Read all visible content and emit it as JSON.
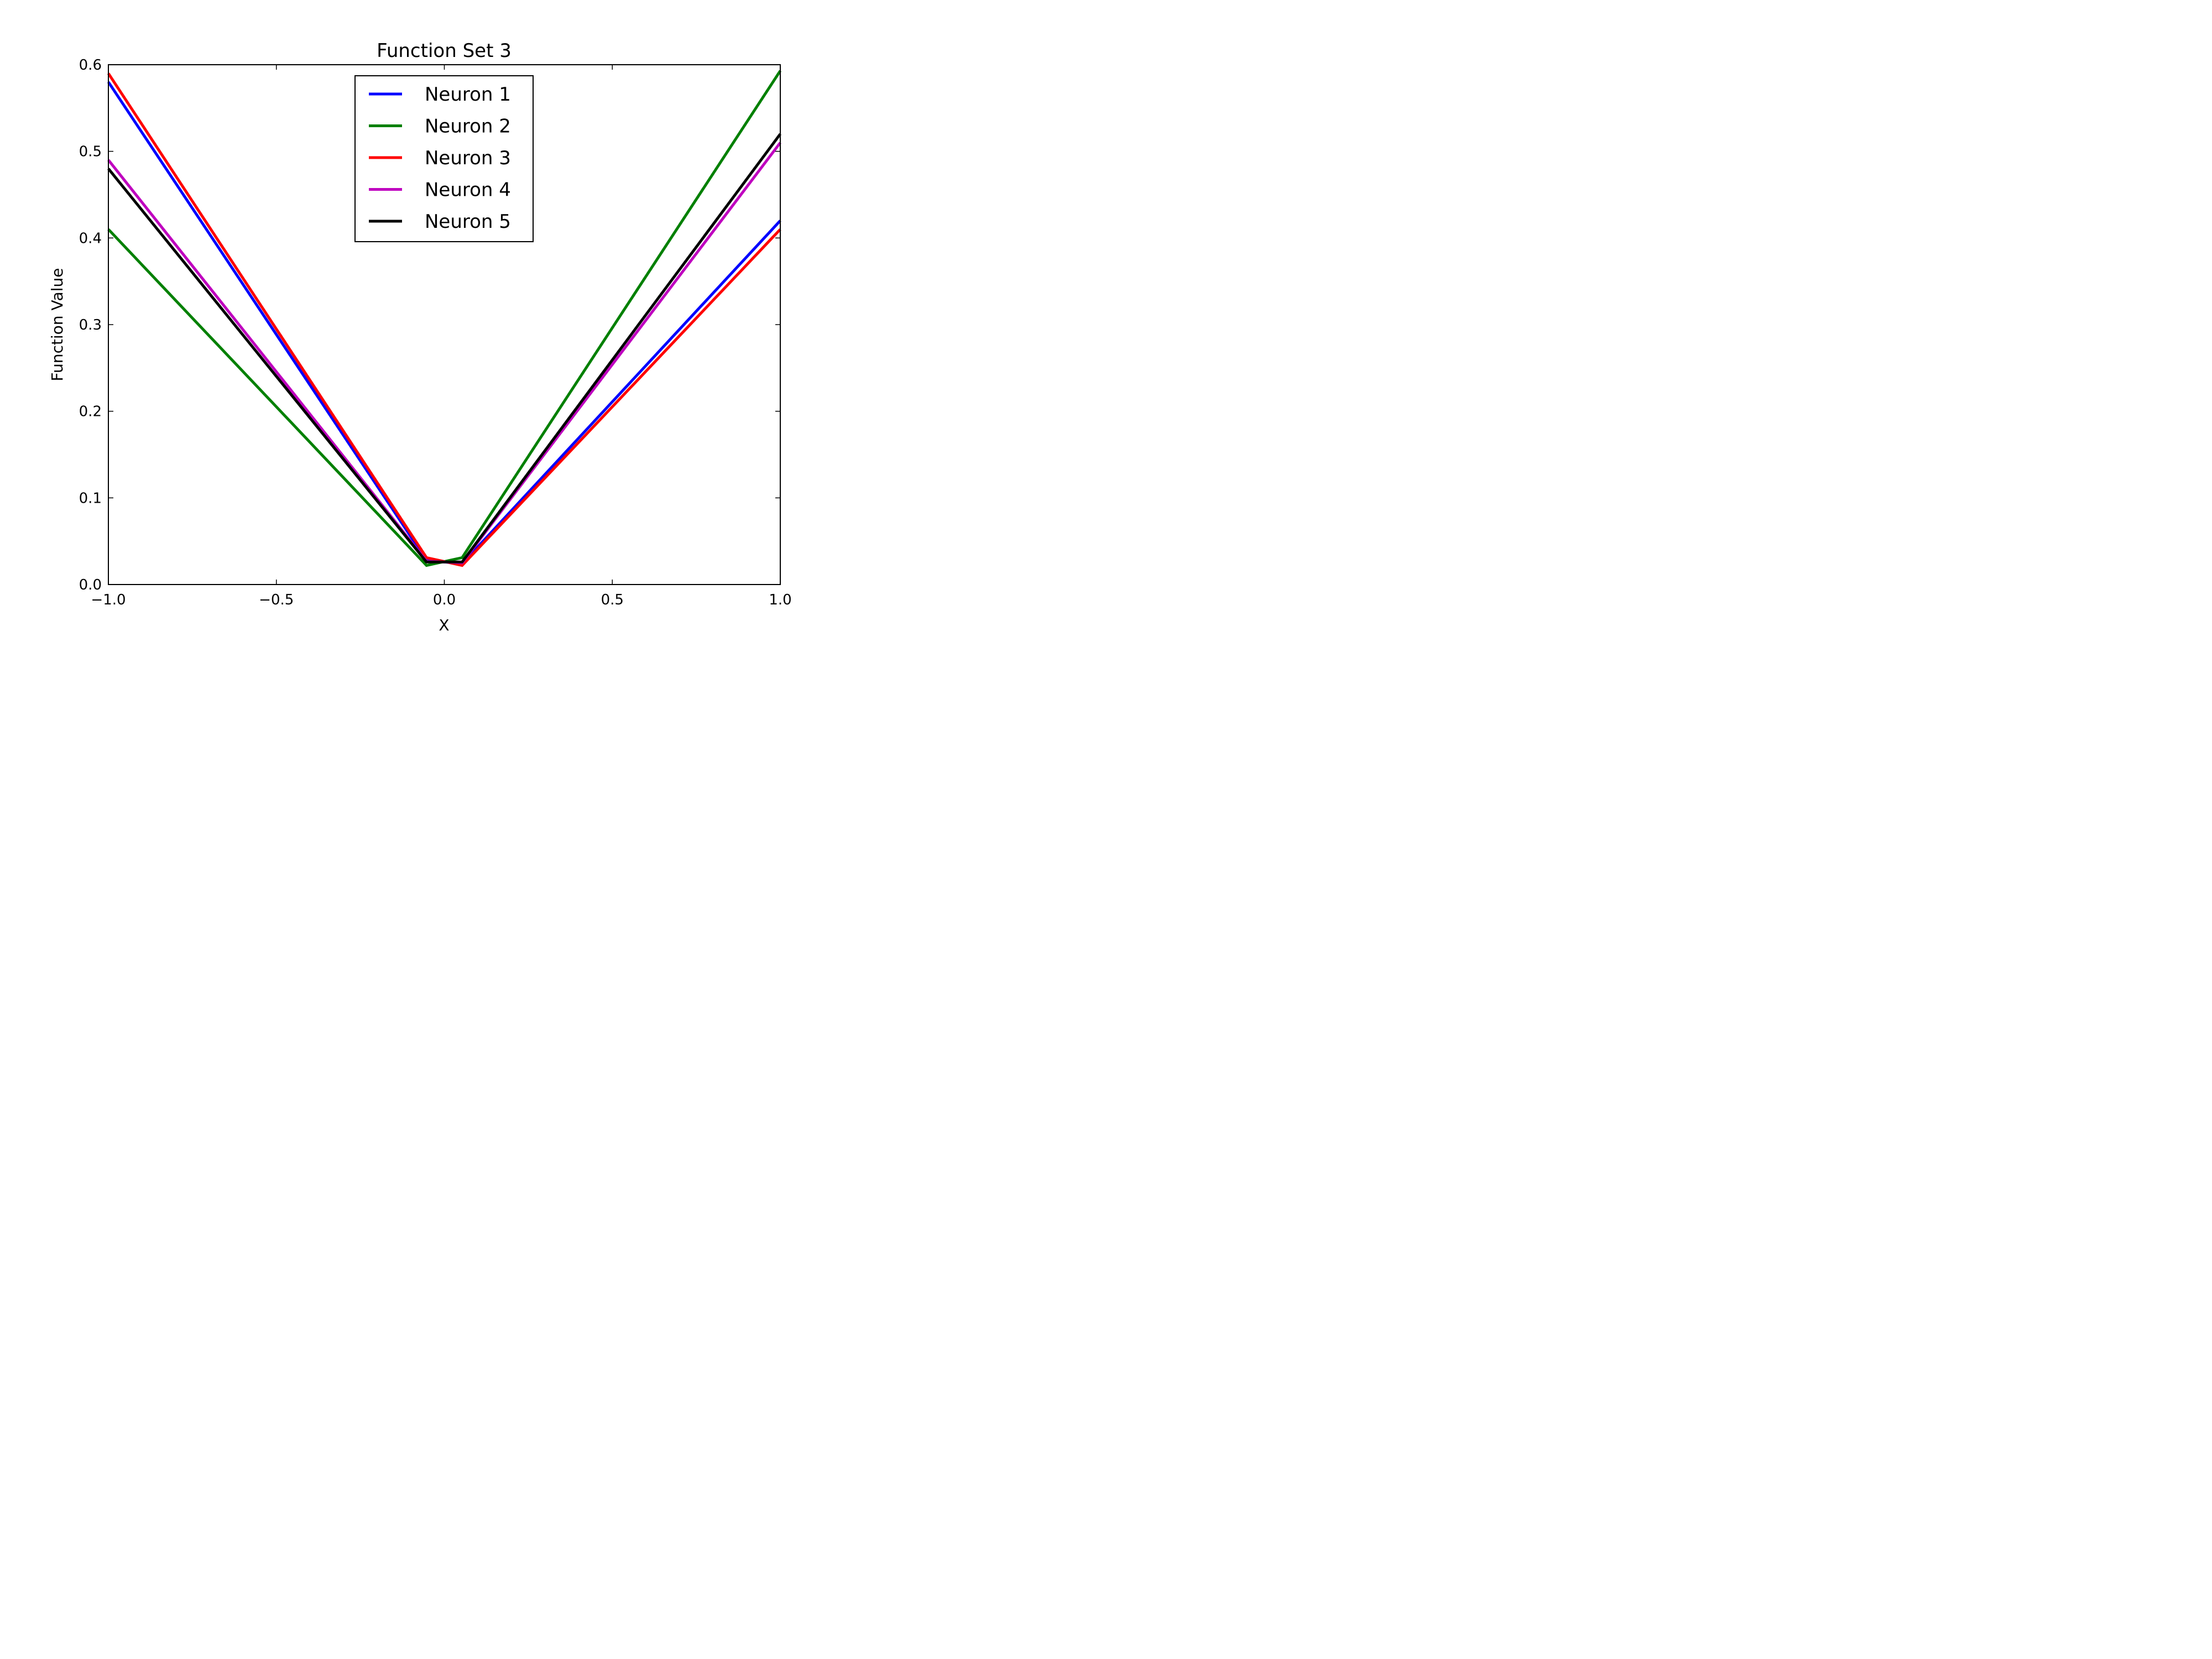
{
  "chart_data": {
    "type": "line",
    "title": "Function Set 3",
    "xlabel": "X",
    "ylabel": "Function Value",
    "xlim": [
      -1.0,
      1.0
    ],
    "ylim": [
      0.0,
      0.6
    ],
    "xticks": [
      -1.0,
      -0.5,
      0.0,
      0.5,
      1.0
    ],
    "xtick_labels": [
      "−1.0",
      "−0.5",
      "0.0",
      "0.5",
      "1.0"
    ],
    "yticks": [
      0.0,
      0.1,
      0.2,
      0.3,
      0.4,
      0.5,
      0.6
    ],
    "ytick_labels": [
      "0.0",
      "0.1",
      "0.2",
      "0.3",
      "0.4",
      "0.5",
      "0.6"
    ],
    "grid": false,
    "legend_position": "upper-center",
    "series": [
      {
        "name": "Neuron 1",
        "color": "#0000ff",
        "x": [
          -1.0,
          -0.053,
          0.053,
          1.0
        ],
        "y": [
          0.58,
          0.028,
          0.024,
          0.42
        ]
      },
      {
        "name": "Neuron 2",
        "color": "#008000",
        "x": [
          -1.0,
          -0.053,
          0.053,
          1.0
        ],
        "y": [
          0.41,
          0.022,
          0.031,
          0.593
        ]
      },
      {
        "name": "Neuron 3",
        "color": "#ff0000",
        "x": [
          -1.0,
          -0.053,
          0.053,
          1.0
        ],
        "y": [
          0.59,
          0.031,
          0.022,
          0.41
        ]
      },
      {
        "name": "Neuron 4",
        "color": "#bf00bf",
        "x": [
          -1.0,
          -0.053,
          0.053,
          1.0
        ],
        "y": [
          0.49,
          0.027,
          0.025,
          0.51
        ]
      },
      {
        "name": "Neuron 5",
        "color": "#000000",
        "x": [
          -1.0,
          -0.053,
          0.053,
          1.0
        ],
        "y": [
          0.48,
          0.026,
          0.026,
          0.52
        ]
      }
    ]
  }
}
